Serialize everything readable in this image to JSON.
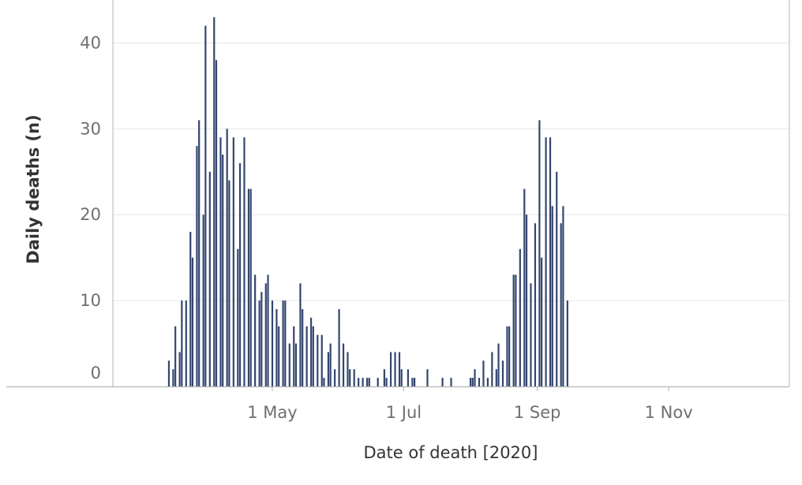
{
  "chart_data": {
    "type": "bar",
    "xlabel": "Date of death [2020]",
    "ylabel": "Daily deaths (n)",
    "ylim": [
      0,
      45
    ],
    "y_ticks": [
      0,
      10,
      20,
      30,
      40
    ],
    "x_ticks": [
      {
        "date": "2020-05-01",
        "label": "1 May"
      },
      {
        "date": "2020-07-01",
        "label": "1 Jul"
      },
      {
        "date": "2020-09-01",
        "label": "1 Sep"
      },
      {
        "date": "2020-11-01",
        "label": "1 Nov"
      }
    ],
    "xlim": [
      "2020-02-17",
      "2020-12-27"
    ],
    "grid": true,
    "colors": {
      "series_a": "#34466f",
      "series_b": "#cfcfcf",
      "grid": "#e6e6e6",
      "axis": "#b5b5b5",
      "tick_text": "#6f6f6f",
      "label_text": "#333333"
    },
    "series": [
      {
        "points": [
          [
            "2020-03-14",
            3
          ],
          [
            "2020-03-16",
            2
          ],
          [
            "2020-03-17",
            7
          ],
          [
            "2020-03-19",
            4
          ],
          [
            "2020-03-20",
            10
          ],
          [
            "2020-03-22",
            10
          ],
          [
            "2020-03-24",
            18
          ],
          [
            "2020-03-25",
            15
          ],
          [
            "2020-03-27",
            28
          ],
          [
            "2020-03-28",
            31
          ],
          [
            "2020-03-30",
            20
          ],
          [
            "2020-03-31",
            42
          ],
          [
            "2020-04-02",
            25
          ],
          [
            "2020-04-04",
            43
          ],
          [
            "2020-04-05",
            38
          ],
          [
            "2020-04-07",
            29
          ],
          [
            "2020-04-08",
            27
          ],
          [
            "2020-04-10",
            30
          ],
          [
            "2020-04-11",
            24
          ],
          [
            "2020-04-13",
            29
          ],
          [
            "2020-04-15",
            16
          ],
          [
            "2020-04-16",
            26
          ],
          [
            "2020-04-18",
            29
          ],
          [
            "2020-04-20",
            23
          ],
          [
            "2020-04-21",
            23
          ],
          [
            "2020-04-23",
            13
          ],
          [
            "2020-04-25",
            10
          ],
          [
            "2020-04-26",
            11
          ],
          [
            "2020-04-28",
            12
          ],
          [
            "2020-04-29",
            13
          ],
          [
            "2020-05-01",
            10
          ],
          [
            "2020-05-03",
            9
          ],
          [
            "2020-05-04",
            7
          ],
          [
            "2020-05-06",
            10
          ],
          [
            "2020-05-07",
            10
          ],
          [
            "2020-05-09",
            5
          ],
          [
            "2020-05-11",
            7
          ],
          [
            "2020-05-12",
            5
          ],
          [
            "2020-05-14",
            12
          ],
          [
            "2020-05-15",
            9
          ],
          [
            "2020-05-17",
            7
          ],
          [
            "2020-05-19",
            8
          ],
          [
            "2020-05-20",
            7
          ],
          [
            "2020-05-22",
            6
          ],
          [
            "2020-05-24",
            6
          ],
          [
            "2020-05-25",
            1
          ],
          [
            "2020-05-27",
            4
          ],
          [
            "2020-05-28",
            5
          ],
          [
            "2020-05-30",
            2
          ],
          [
            "2020-06-01",
            9
          ],
          [
            "2020-06-03",
            5
          ],
          [
            "2020-06-05",
            4
          ],
          [
            "2020-06-06",
            2
          ],
          [
            "2020-06-08",
            2
          ],
          [
            "2020-06-10",
            1
          ],
          [
            "2020-06-12",
            1
          ],
          [
            "2020-06-14",
            1
          ],
          [
            "2020-06-15",
            1
          ],
          [
            "2020-06-19",
            1
          ],
          [
            "2020-06-22",
            2
          ],
          [
            "2020-06-23",
            1
          ],
          [
            "2020-06-25",
            4
          ],
          [
            "2020-06-27",
            4
          ],
          [
            "2020-06-29",
            4
          ],
          [
            "2020-06-30",
            2
          ],
          [
            "2020-07-03",
            2
          ],
          [
            "2020-07-05",
            1
          ],
          [
            "2020-07-06",
            1
          ],
          [
            "2020-07-12",
            2
          ],
          [
            "2020-07-19",
            1
          ],
          [
            "2020-07-23",
            1
          ],
          [
            "2020-08-01",
            1
          ],
          [
            "2020-08-02",
            1
          ],
          [
            "2020-08-03",
            2
          ],
          [
            "2020-08-05",
            1
          ],
          [
            "2020-08-07",
            3
          ],
          [
            "2020-08-09",
            1
          ],
          [
            "2020-08-11",
            4
          ],
          [
            "2020-08-13",
            2
          ],
          [
            "2020-08-14",
            5
          ],
          [
            "2020-08-16",
            3
          ],
          [
            "2020-08-18",
            7
          ],
          [
            "2020-08-19",
            7
          ],
          [
            "2020-08-21",
            13
          ],
          [
            "2020-08-22",
            13
          ],
          [
            "2020-08-24",
            16
          ],
          [
            "2020-08-26",
            23
          ],
          [
            "2020-08-27",
            20
          ],
          [
            "2020-08-29",
            12
          ],
          [
            "2020-08-31",
            19
          ],
          [
            "2020-09-02",
            31
          ],
          [
            "2020-09-03",
            15
          ],
          [
            "2020-09-05",
            29
          ],
          [
            "2020-09-07",
            29
          ],
          [
            "2020-09-08",
            21
          ],
          [
            "2020-09-10",
            25
          ],
          [
            "2020-09-12",
            19
          ],
          [
            "2020-09-13",
            21
          ],
          [
            "2020-09-15",
            10
          ]
        ]
      },
      {
        "points": []
      }
    ]
  }
}
